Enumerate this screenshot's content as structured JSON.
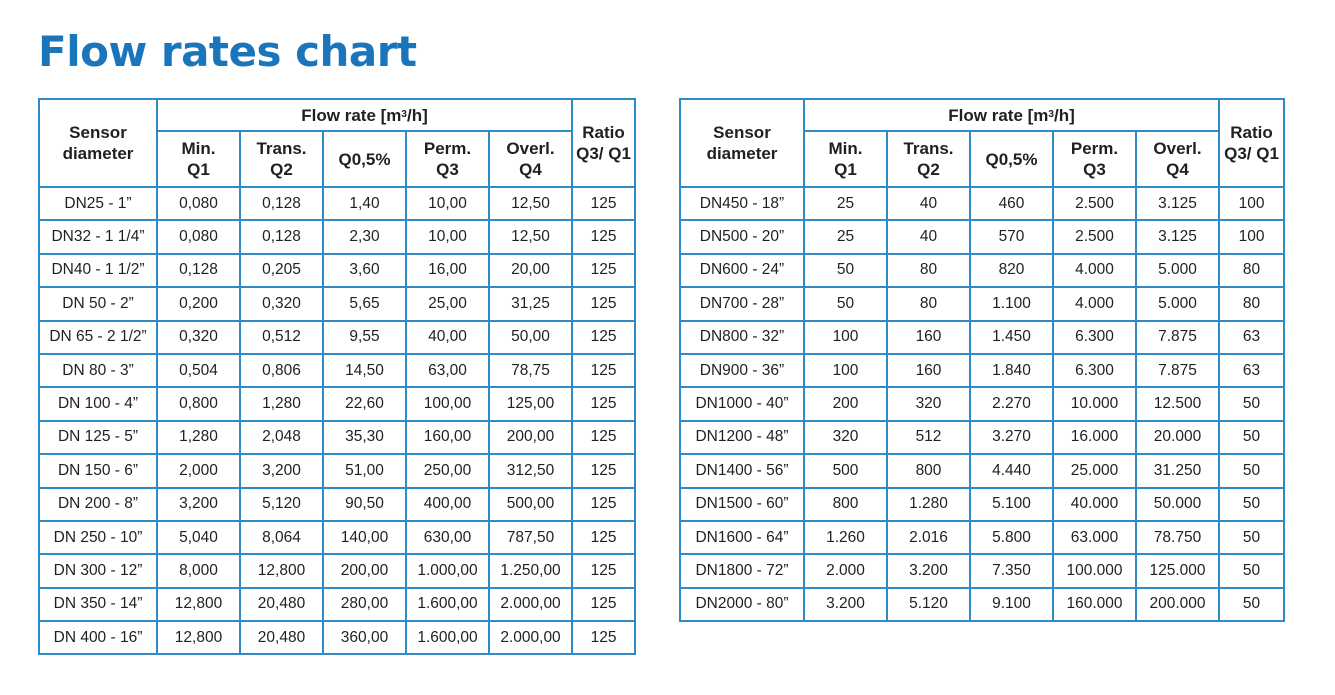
{
  "title": "Flow rates chart",
  "colors": {
    "accent": "#1b75bb",
    "border": "#2f8ac8"
  },
  "headers": {
    "sensor": "Sensor diameter",
    "flow_rate_prefix": "Flow rate [m",
    "flow_rate_sup": "3",
    "flow_rate_suffix": "/h]",
    "ratio": "Ratio Q3/ Q1",
    "columns": [
      {
        "top": "Min.",
        "bottom": "Q1"
      },
      {
        "top": "Trans.",
        "bottom": "Q2"
      },
      {
        "top": "Q0,5%",
        "bottom": ""
      },
      {
        "top": "Perm.",
        "bottom": "Q3"
      },
      {
        "top": "Overl.",
        "bottom": "Q4"
      }
    ]
  },
  "left_table": {
    "rows": [
      [
        "DN25 - 1”",
        "0,080",
        "0,128",
        "1,40",
        "10,00",
        "12,50",
        "125"
      ],
      [
        "DN32 - 1 1/4”",
        "0,080",
        "0,128",
        "2,30",
        "10,00",
        "12,50",
        "125"
      ],
      [
        "DN40 - 1 1/2”",
        "0,128",
        "0,205",
        "3,60",
        "16,00",
        "20,00",
        "125"
      ],
      [
        "DN 50 - 2”",
        "0,200",
        "0,320",
        "5,65",
        "25,00",
        "31,25",
        "125"
      ],
      [
        "DN 65 - 2 1/2”",
        "0,320",
        "0,512",
        "9,55",
        "40,00",
        "50,00",
        "125"
      ],
      [
        "DN 80 - 3”",
        "0,504",
        "0,806",
        "14,50",
        "63,00",
        "78,75",
        "125"
      ],
      [
        "DN 100 - 4”",
        "0,800",
        "1,280",
        "22,60",
        "100,00",
        "125,00",
        "125"
      ],
      [
        "DN 125 - 5”",
        "1,280",
        "2,048",
        "35,30",
        "160,00",
        "200,00",
        "125"
      ],
      [
        "DN 150 - 6”",
        "2,000",
        "3,200",
        "51,00",
        "250,00",
        "312,50",
        "125"
      ],
      [
        "DN 200 - 8”",
        "3,200",
        "5,120",
        "90,50",
        "400,00",
        "500,00",
        "125"
      ],
      [
        "DN 250 - 10”",
        "5,040",
        "8,064",
        "140,00",
        "630,00",
        "787,50",
        "125"
      ],
      [
        "DN 300 - 12”",
        "8,000",
        "12,800",
        "200,00",
        "1.000,00",
        "1.250,00",
        "125"
      ],
      [
        "DN 350 - 14”",
        "12,800",
        "20,480",
        "280,00",
        "1.600,00",
        "2.000,00",
        "125"
      ],
      [
        "DN 400 - 16”",
        "12,800",
        "20,480",
        "360,00",
        "1.600,00",
        "2.000,00",
        "125"
      ]
    ]
  },
  "right_table": {
    "rows": [
      [
        "DN450 - 18”",
        "25",
        "40",
        "460",
        "2.500",
        "3.125",
        "100"
      ],
      [
        "DN500 - 20”",
        "25",
        "40",
        "570",
        "2.500",
        "3.125",
        "100"
      ],
      [
        "DN600 - 24”",
        "50",
        "80",
        "820",
        "4.000",
        "5.000",
        "80"
      ],
      [
        "DN700 - 28”",
        "50",
        "80",
        "1.100",
        "4.000",
        "5.000",
        "80"
      ],
      [
        "DN800 - 32”",
        "100",
        "160",
        "1.450",
        "6.300",
        "7.875",
        "63"
      ],
      [
        "DN900 - 36”",
        "100",
        "160",
        "1.840",
        "6.300",
        "7.875",
        "63"
      ],
      [
        "DN1000 - 40”",
        "200",
        "320",
        "2.270",
        "10.000",
        "12.500",
        "50"
      ],
      [
        "DN1200 - 48”",
        "320",
        "512",
        "3.270",
        "16.000",
        "20.000",
        "50"
      ],
      [
        "DN1400 - 56”",
        "500",
        "800",
        "4.440",
        "25.000",
        "31.250",
        "50"
      ],
      [
        "DN1500 - 60”",
        "800",
        "1.280",
        "5.100",
        "40.000",
        "50.000",
        "50"
      ],
      [
        "DN1600 - 64”",
        "1.260",
        "2.016",
        "5.800",
        "63.000",
        "78.750",
        "50"
      ],
      [
        "DN1800 - 72”",
        "2.000",
        "3.200",
        "7.350",
        "100.000",
        "125.000",
        "50"
      ],
      [
        "DN2000 - 80”",
        "3.200",
        "5.120",
        "9.100",
        "160.000",
        "200.000",
        "50"
      ]
    ]
  }
}
